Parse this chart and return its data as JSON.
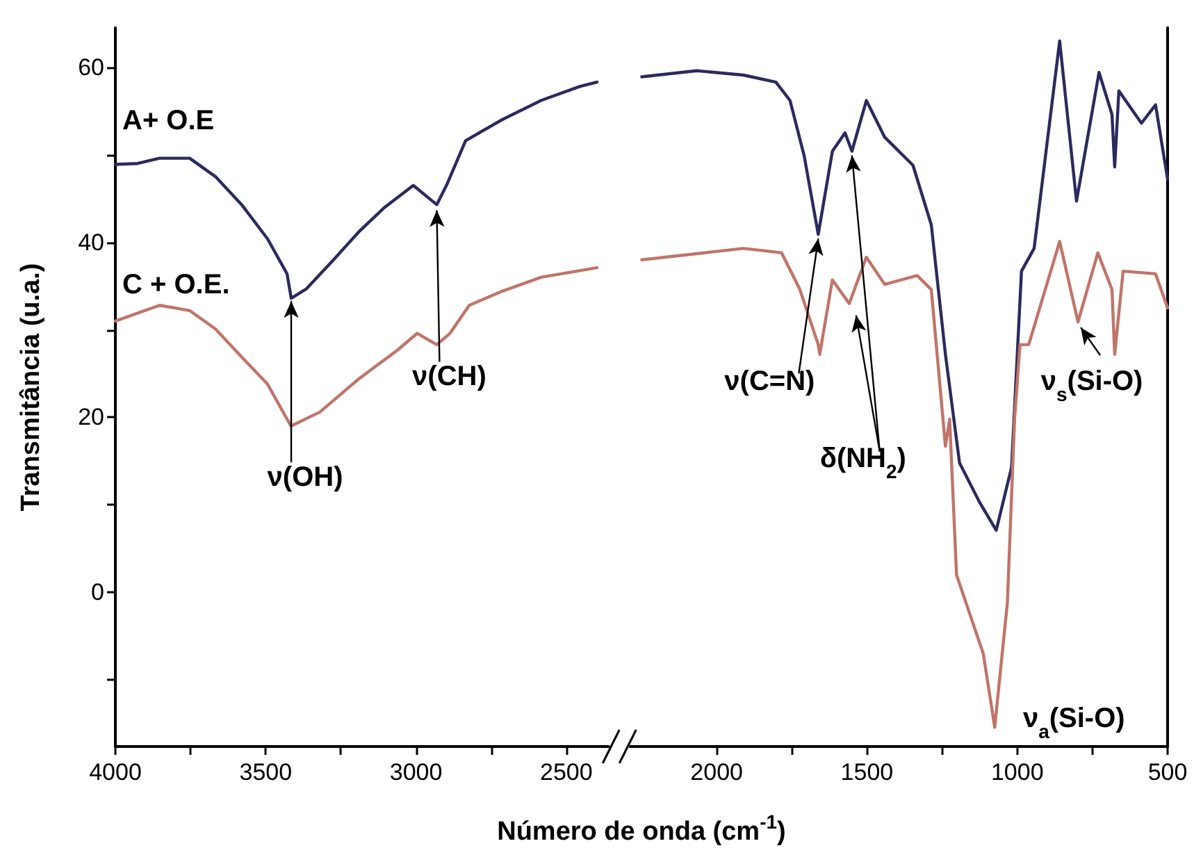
{
  "chart_data": {
    "type": "line",
    "xlabel": "Número de onda   (cm$^{-1}$)",
    "ylabel": "Transmitância   (u.a.)",
    "xlim": [
      4000,
      500
    ],
    "ylim": [
      -17.6,
      64.5
    ],
    "xticks": [
      4000,
      {
        "value": 3750,
        "label": null
      },
      3500,
      {
        "value": 3250,
        "label": null
      },
      3000,
      {
        "value": 2750,
        "label": null
      },
      2500,
      2000,
      {
        "value": 1750,
        "label": null
      },
      1500,
      {
        "value": 1250,
        "label": null
      },
      1000,
      {
        "value": 750,
        "label": null
      },
      500
    ],
    "yticks": [
      {
        "value": -10,
        "label": null
      },
      0,
      {
        "value": 10,
        "label": null
      },
      20,
      {
        "value": 30,
        "label": null
      },
      40,
      {
        "value": 50,
        "label": null
      },
      60
    ],
    "grid": false,
    "legend": false,
    "marker": "none",
    "line_style": "solid",
    "series": [
      {
        "name": "A+ O.E",
        "color": "#2b2a5e",
        "x": [
          4000,
          3926,
          3853,
          3753,
          3667,
          3580,
          3494,
          3429,
          3415,
          3364,
          3277,
          3190,
          3104,
          3009,
          2931,
          2896,
          2835,
          2714,
          2584,
          2455,
          2398,
          2325,
          2249,
          2066,
          1911,
          1803,
          1756,
          1709,
          1662,
          1615,
          1573,
          1550,
          1502,
          1441,
          1347,
          1286,
          1239,
          1192,
          1127,
          1070,
          1019,
          986,
          944,
          859,
          803,
          728,
          685,
          676,
          662,
          587,
          540,
          500
        ],
        "values": [
          48.9,
          49.0,
          49.6,
          49.6,
          47.5,
          44.3,
          40.4,
          36.4,
          33.6,
          34.7,
          37.9,
          41.2,
          44.0,
          46.5,
          44.3,
          46.7,
          51.6,
          54.0,
          56.2,
          57.8,
          58.3,
          null,
          58.9,
          59.6,
          59.1,
          58.3,
          56.2,
          49.9,
          40.9,
          50.4,
          52.5,
          50.4,
          56.2,
          52.0,
          48.8,
          42.0,
          27.2,
          14.8,
          10.4,
          7.1,
          14.3,
          36.7,
          39.3,
          63.0,
          44.7,
          59.4,
          54.6,
          48.6,
          57.3,
          53.6,
          55.7,
          47.2
        ]
      },
      {
        "name": "C + O.E.",
        "color": "#c07468",
        "x": [
          4000,
          3853,
          3753,
          3667,
          3580,
          3494,
          3416,
          3320,
          3190,
          3061,
          2996,
          2931,
          2887,
          2823,
          2714,
          2584,
          2398,
          2325,
          2249,
          1911,
          1784,
          1723,
          1662,
          1657,
          1615,
          1559,
          1502,
          1441,
          1333,
          1286,
          1239,
          1225,
          1202,
          1113,
          1075,
          1033,
          1009,
          991,
          962,
          859,
          798,
          732,
          685,
          676,
          648,
          540,
          500
        ],
        "values": [
          31.0,
          32.8,
          32.2,
          30.1,
          26.9,
          23.8,
          19.0,
          20.6,
          24.4,
          27.7,
          29.6,
          28.3,
          29.6,
          32.8,
          34.4,
          36.0,
          37.1,
          null,
          38.0,
          39.3,
          38.8,
          34.6,
          28.3,
          27.2,
          35.7,
          33.0,
          38.3,
          35.2,
          36.2,
          34.6,
          16.7,
          19.8,
          2.0,
          -7.0,
          -15.4,
          -1.2,
          19.8,
          28.3,
          28.3,
          40.1,
          30.9,
          38.8,
          34.6,
          27.2,
          36.7,
          36.4,
          32.5
        ]
      }
    ],
    "annotations": [
      {
        "text": "ν(OH)",
        "x": 3415,
        "y": 33.6
      },
      {
        "text": "ν(CH)",
        "x": 2931,
        "y": 44.3
      },
      {
        "text": "ν(C=N)",
        "x": 1662,
        "y": 40.9
      },
      {
        "text": "δ(NH$_{2}$)",
        "x": 1550,
        "y": 50.4
      },
      {
        "text": "ν$_{s}$(Si-O)",
        "x": 798,
        "y": 30.9
      },
      {
        "text": "ν$_{a}$(Si-O)",
        "x": 1075,
        "y": -15.4
      }
    ]
  }
}
